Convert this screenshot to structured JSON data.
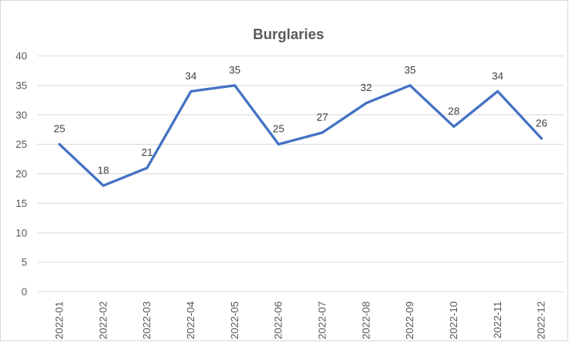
{
  "chart_data": {
    "type": "line",
    "title": "Burglaries",
    "xlabel": "",
    "ylabel": "",
    "categories": [
      "2022-01",
      "2022-02",
      "2022-03",
      "2022-04",
      "2022-05",
      "2022-06",
      "2022-07",
      "2022-08",
      "2022-09",
      "2022-10",
      "2022-11",
      "2022-12"
    ],
    "series": [
      {
        "values": [
          25,
          18,
          21,
          34,
          35,
          25,
          27,
          32,
          35,
          28,
          34,
          26
        ],
        "color": "#4472C4"
      }
    ],
    "ylim": [
      0,
      40
    ],
    "yticks": [
      0,
      5,
      10,
      15,
      20,
      25,
      30,
      35,
      40
    ],
    "grid": true,
    "legend": "none",
    "data_labels": true
  }
}
